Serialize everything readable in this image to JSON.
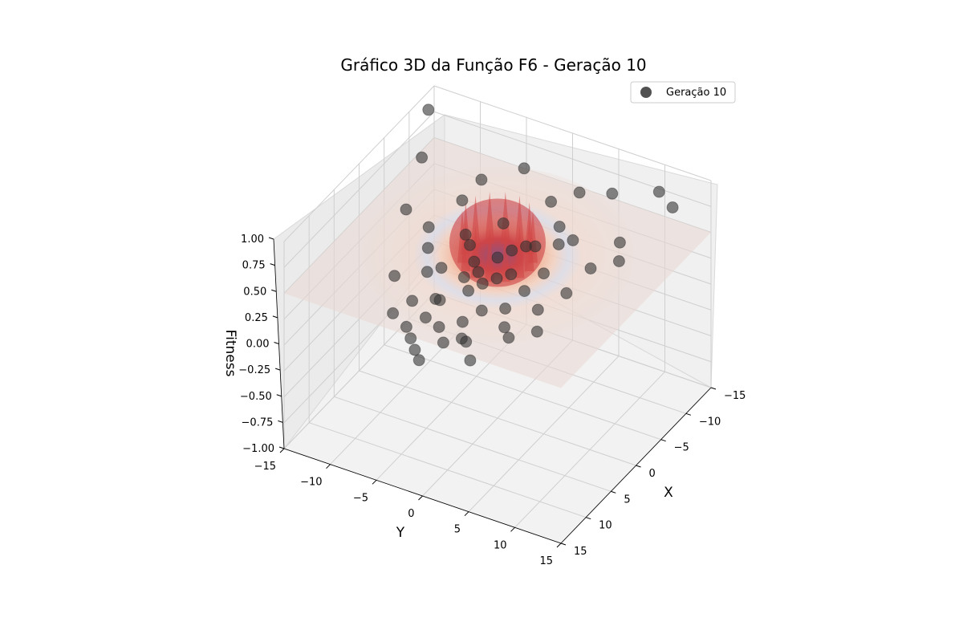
{
  "chart_data": {
    "type": "scatter",
    "projection": "3d",
    "title": "Gráfico 3D da Função F6 - Geração 10",
    "xlabel": "X",
    "ylabel": "Y",
    "zlabel": "Fitness",
    "xlim": [
      -15,
      15
    ],
    "ylim": [
      -15,
      15
    ],
    "zlim": [
      -1,
      1
    ],
    "xticks": [
      "−15",
      "−10",
      "−5",
      "0",
      "5",
      "10",
      "15"
    ],
    "yticks": [
      "−15",
      "−10",
      "−5",
      "0",
      "5",
      "10",
      "15"
    ],
    "zticks": [
      "−1.00",
      "−0.75",
      "−0.50",
      "−0.25",
      "0.00",
      "0.25",
      "0.50",
      "0.75",
      "1.00"
    ],
    "grid": true,
    "legend_position": "top-right",
    "surface": {
      "function": "F6",
      "colormap": "coolwarm",
      "range": [
        -15,
        15
      ],
      "opacity": "semi-transparent"
    },
    "series": [
      {
        "name": "Geração 10",
        "color": "#333333",
        "points": [
          {
            "x": -12,
            "y": -14,
            "z": 0.95
          },
          {
            "x": -7,
            "y": -12,
            "z": 0.8
          },
          {
            "x": -2,
            "y": -11,
            "z": 0.58
          },
          {
            "x": 4,
            "y": -9,
            "z": 0.3
          },
          {
            "x": -4,
            "y": -6,
            "z": 0.72
          },
          {
            "x": -6,
            "y": -5,
            "z": 0.85
          },
          {
            "x": -9,
            "y": -2,
            "z": 0.9
          },
          {
            "x": 6,
            "y": -3,
            "z": 0.35
          },
          {
            "x": 0,
            "y": -3,
            "z": 0.58
          },
          {
            "x": 3,
            "y": -2,
            "z": 0.45
          },
          {
            "x": -3,
            "y": -1,
            "z": 0.7
          },
          {
            "x": 7,
            "y": 0,
            "z": 0.28
          },
          {
            "x": -1,
            "y": -4,
            "z": 0.6
          },
          {
            "x": 2,
            "y": -5,
            "z": 0.4
          },
          {
            "x": 8,
            "y": -2,
            "z": 0.22
          },
          {
            "x": 9,
            "y": 1,
            "z": 0.25
          },
          {
            "x": 10,
            "y": 2,
            "z": 0.3
          },
          {
            "x": 5,
            "y": 1,
            "z": 0.32
          },
          {
            "x": 4,
            "y": 3,
            "z": 0.35
          },
          {
            "x": 6,
            "y": 4,
            "z": 0.3
          },
          {
            "x": 7,
            "y": 5,
            "z": 0.28
          },
          {
            "x": 11,
            "y": 3,
            "z": 0.2
          },
          {
            "x": 3,
            "y": 0,
            "z": 0.45
          },
          {
            "x": 1,
            "y": 2,
            "z": 0.5
          },
          {
            "x": 2,
            "y": 1,
            "z": 0.48
          },
          {
            "x": 0,
            "y": 0,
            "z": 0.55
          },
          {
            "x": -1,
            "y": 1,
            "z": 0.6
          },
          {
            "x": -2,
            "y": 3,
            "z": 0.65
          },
          {
            "x": 3,
            "y": 6,
            "z": 0.38
          },
          {
            "x": 5,
            "y": 7,
            "z": 0.3
          },
          {
            "x": 1,
            "y": 8,
            "z": 0.5
          },
          {
            "x": -2,
            "y": 9,
            "z": 0.62
          },
          {
            "x": -4,
            "y": 6,
            "z": 0.7
          },
          {
            "x": -5,
            "y": 4,
            "z": 0.72
          },
          {
            "x": -7,
            "y": 2,
            "z": 0.8
          },
          {
            "x": -9,
            "y": 4,
            "z": 0.85
          },
          {
            "x": -10,
            "y": 7,
            "z": 0.88
          },
          {
            "x": -12,
            "y": 11,
            "z": 0.92
          },
          {
            "x": -11,
            "y": 13,
            "z": 0.88
          },
          {
            "x": -6,
            "y": 10,
            "z": 0.7
          },
          {
            "x": -4,
            "y": 11,
            "z": 0.65
          },
          {
            "x": -3,
            "y": 5,
            "z": 0.68
          },
          {
            "x": 0,
            "y": 5,
            "z": 0.55
          },
          {
            "x": 2,
            "y": 4,
            "z": 0.45
          },
          {
            "x": 4,
            "y": -1,
            "z": 0.4
          },
          {
            "x": 6,
            "y": -6,
            "z": 0.25
          },
          {
            "x": 8,
            "y": -7,
            "z": 0.2
          },
          {
            "x": 9,
            "y": -5,
            "z": 0.18
          },
          {
            "x": 10,
            "y": -4,
            "z": 0.15
          },
          {
            "x": 11,
            "y": -3,
            "z": 0.12
          },
          {
            "x": 12,
            "y": -2,
            "z": 0.1
          },
          {
            "x": 9,
            "y": -1,
            "z": 0.15
          },
          {
            "x": 7,
            "y": -4,
            "z": 0.2
          },
          {
            "x": 5,
            "y": -4,
            "z": 0.28
          },
          {
            "x": 3,
            "y": -6,
            "z": 0.38
          },
          {
            "x": 1,
            "y": -7,
            "z": 0.48
          },
          {
            "x": -1,
            "y": -8,
            "z": 0.55
          },
          {
            "x": 1,
            "y": -2,
            "z": 0.5
          },
          {
            "x": 2,
            "y": -1,
            "z": 0.48
          },
          {
            "x": -2,
            "y": 2,
            "z": 0.62
          }
        ]
      }
    ]
  }
}
